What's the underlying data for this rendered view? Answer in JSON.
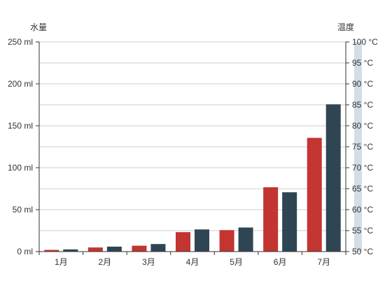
{
  "chart_data": {
    "type": "bar",
    "categories": [
      "1月",
      "2月",
      "3月",
      "4月",
      "5月",
      "6月",
      "7月"
    ],
    "y_left": {
      "name": "水量",
      "min": 0,
      "max": 250,
      "interval": 50,
      "tick_labels": [
        "0 ml",
        "50 ml",
        "100 ml",
        "150 ml",
        "200 ml",
        "250 ml"
      ]
    },
    "y_right": {
      "name": "温度",
      "min": 50,
      "max": 100,
      "interval": 5,
      "tick_labels": [
        "50 °C",
        "55 °C",
        "60 °C",
        "65 °C",
        "70 °C",
        "75 °C",
        "80 °C",
        "85 °C",
        "90 °C",
        "95 °C",
        "100 °C"
      ]
    },
    "series": [
      {
        "values": [
          2.0,
          4.9,
          7.0,
          23.2,
          25.6,
          76.7,
          135.6
        ],
        "color": "#c23531"
      },
      {
        "values": [
          2.6,
          5.9,
          9.0,
          26.4,
          28.7,
          70.7,
          175.6
        ],
        "color": "#2f4554"
      }
    ],
    "grid": true,
    "legend": "none",
    "colors": {
      "axis": "#333333",
      "grid": "#cccccc",
      "right_axis_band": "#d3dde6"
    }
  }
}
